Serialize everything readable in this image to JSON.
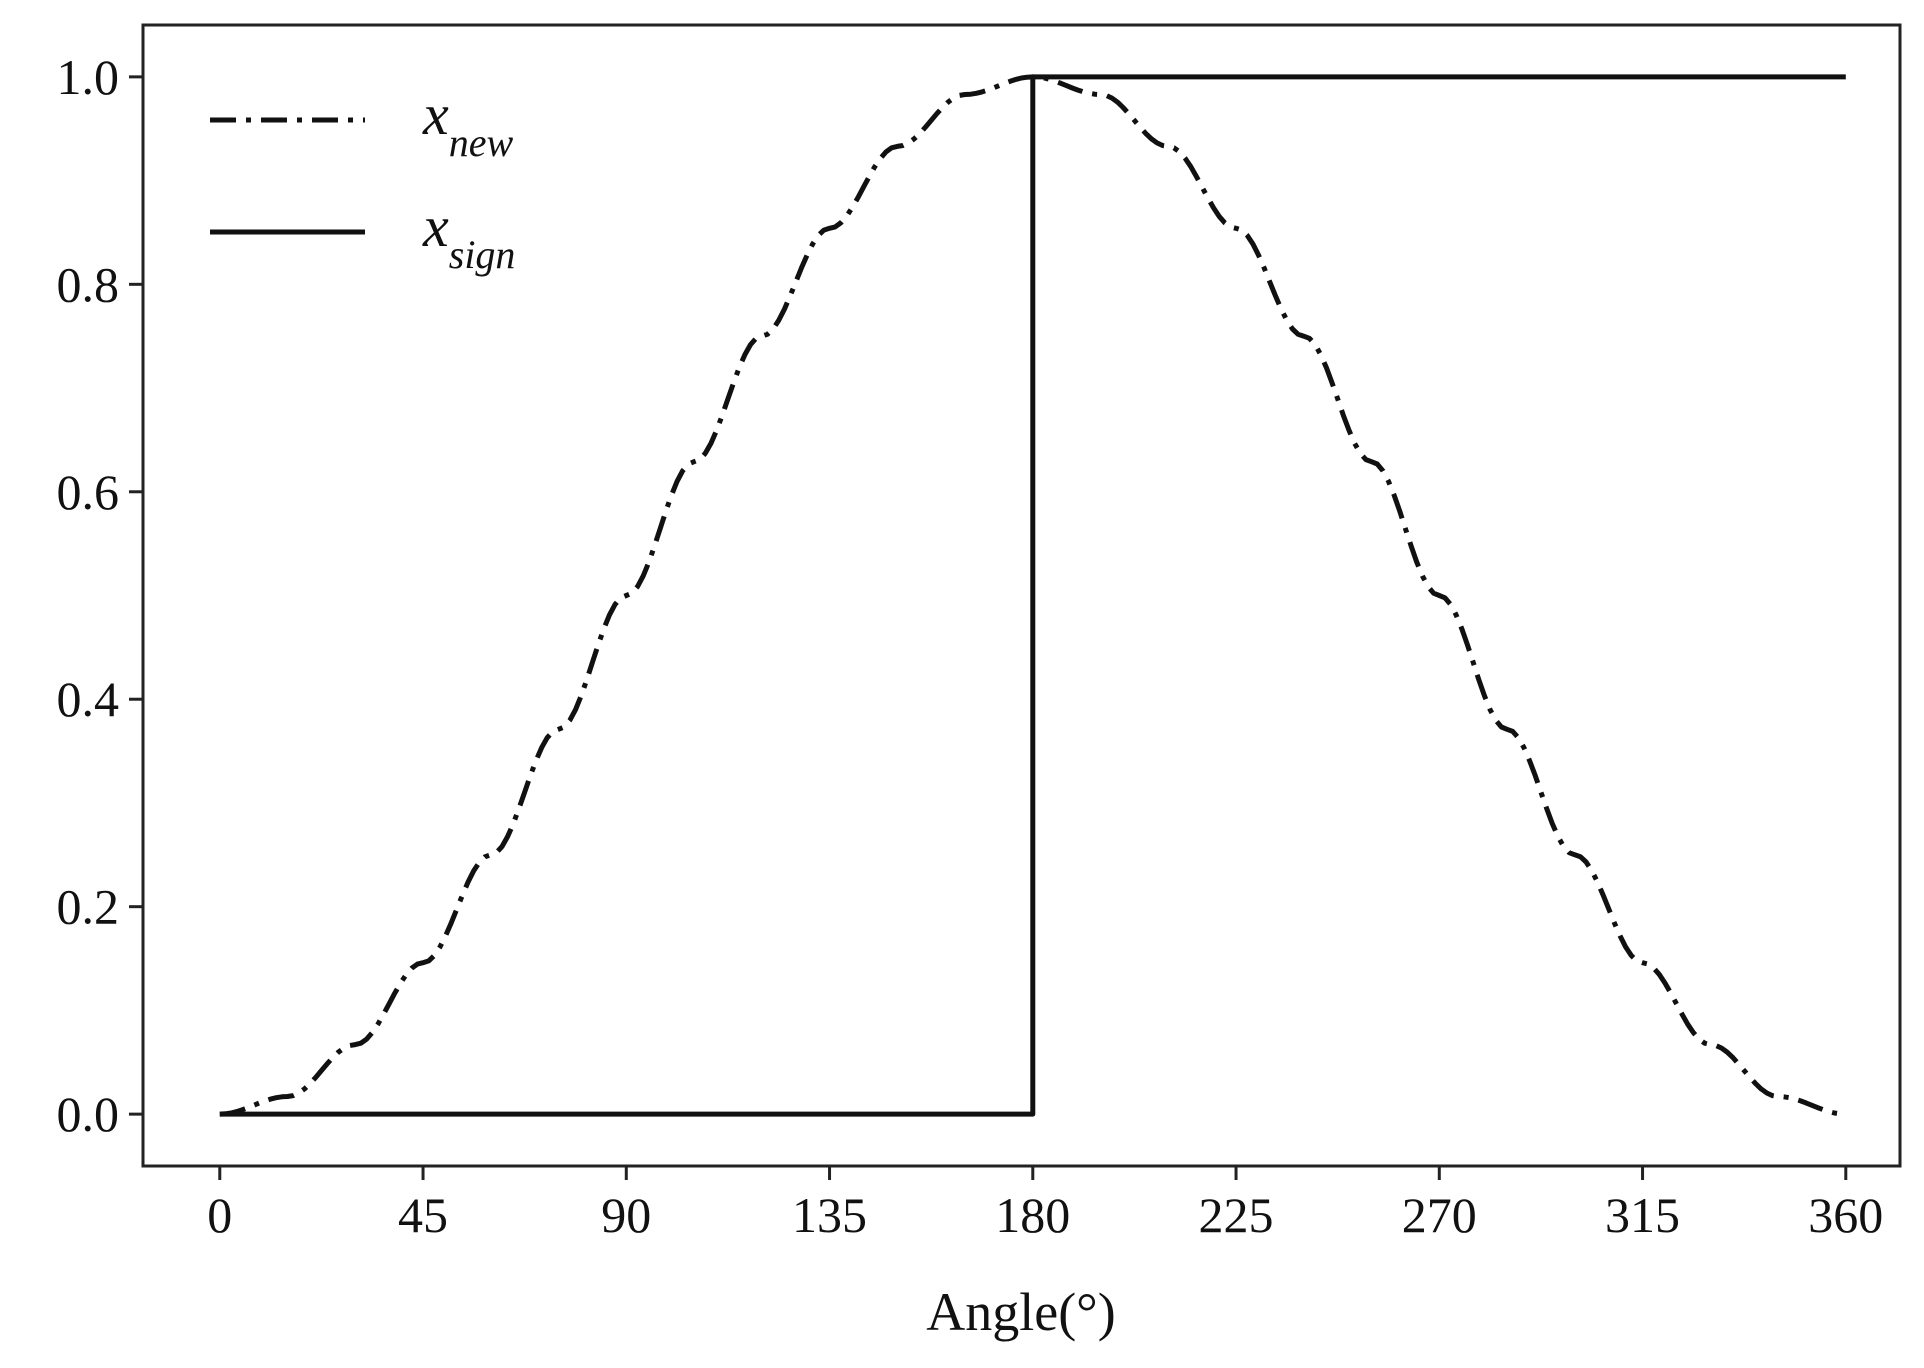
{
  "chart_data": {
    "type": "line",
    "title": "",
    "xlabel": "Angle(°)",
    "ylabel": "",
    "xlim": [
      -17,
      372
    ],
    "ylim": [
      -0.05,
      1.05
    ],
    "xticks": [
      0,
      45,
      90,
      135,
      180,
      225,
      270,
      315,
      360
    ],
    "yticks": [
      0.0,
      0.2,
      0.4,
      0.6,
      0.8,
      1.0
    ],
    "xtick_labels": [
      "0",
      "45",
      "90",
      "135",
      "180",
      "225",
      "270",
      "315",
      "360"
    ],
    "ytick_labels": [
      "0.0",
      "0.2",
      "0.4",
      "0.6",
      "0.8",
      "1.0"
    ],
    "grid": false,
    "legend_position": "top-left",
    "series": [
      {
        "name": "x",
        "name_subscript": "new",
        "style": "dashdot",
        "color": "#111111",
        "x": [
          0,
          15,
          30,
          45,
          60,
          75,
          90,
          105,
          120,
          135,
          150,
          165,
          180,
          195,
          210,
          225,
          240,
          255,
          270,
          285,
          300,
          315,
          330,
          345,
          360
        ],
        "y": [
          0.0,
          0.017,
          0.067,
          0.146,
          0.25,
          0.371,
          0.5,
          0.629,
          0.75,
          0.854,
          0.933,
          0.983,
          1.0,
          0.983,
          0.933,
          0.854,
          0.75,
          0.629,
          0.5,
          0.371,
          0.25,
          0.146,
          0.067,
          0.017,
          0.0
        ]
      },
      {
        "name": "x",
        "name_subscript": "sign",
        "style": "solid",
        "color": "#111111",
        "x": [
          0,
          180,
          180,
          360
        ],
        "y": [
          0.0,
          0.0,
          1.0,
          1.0
        ]
      }
    ]
  }
}
